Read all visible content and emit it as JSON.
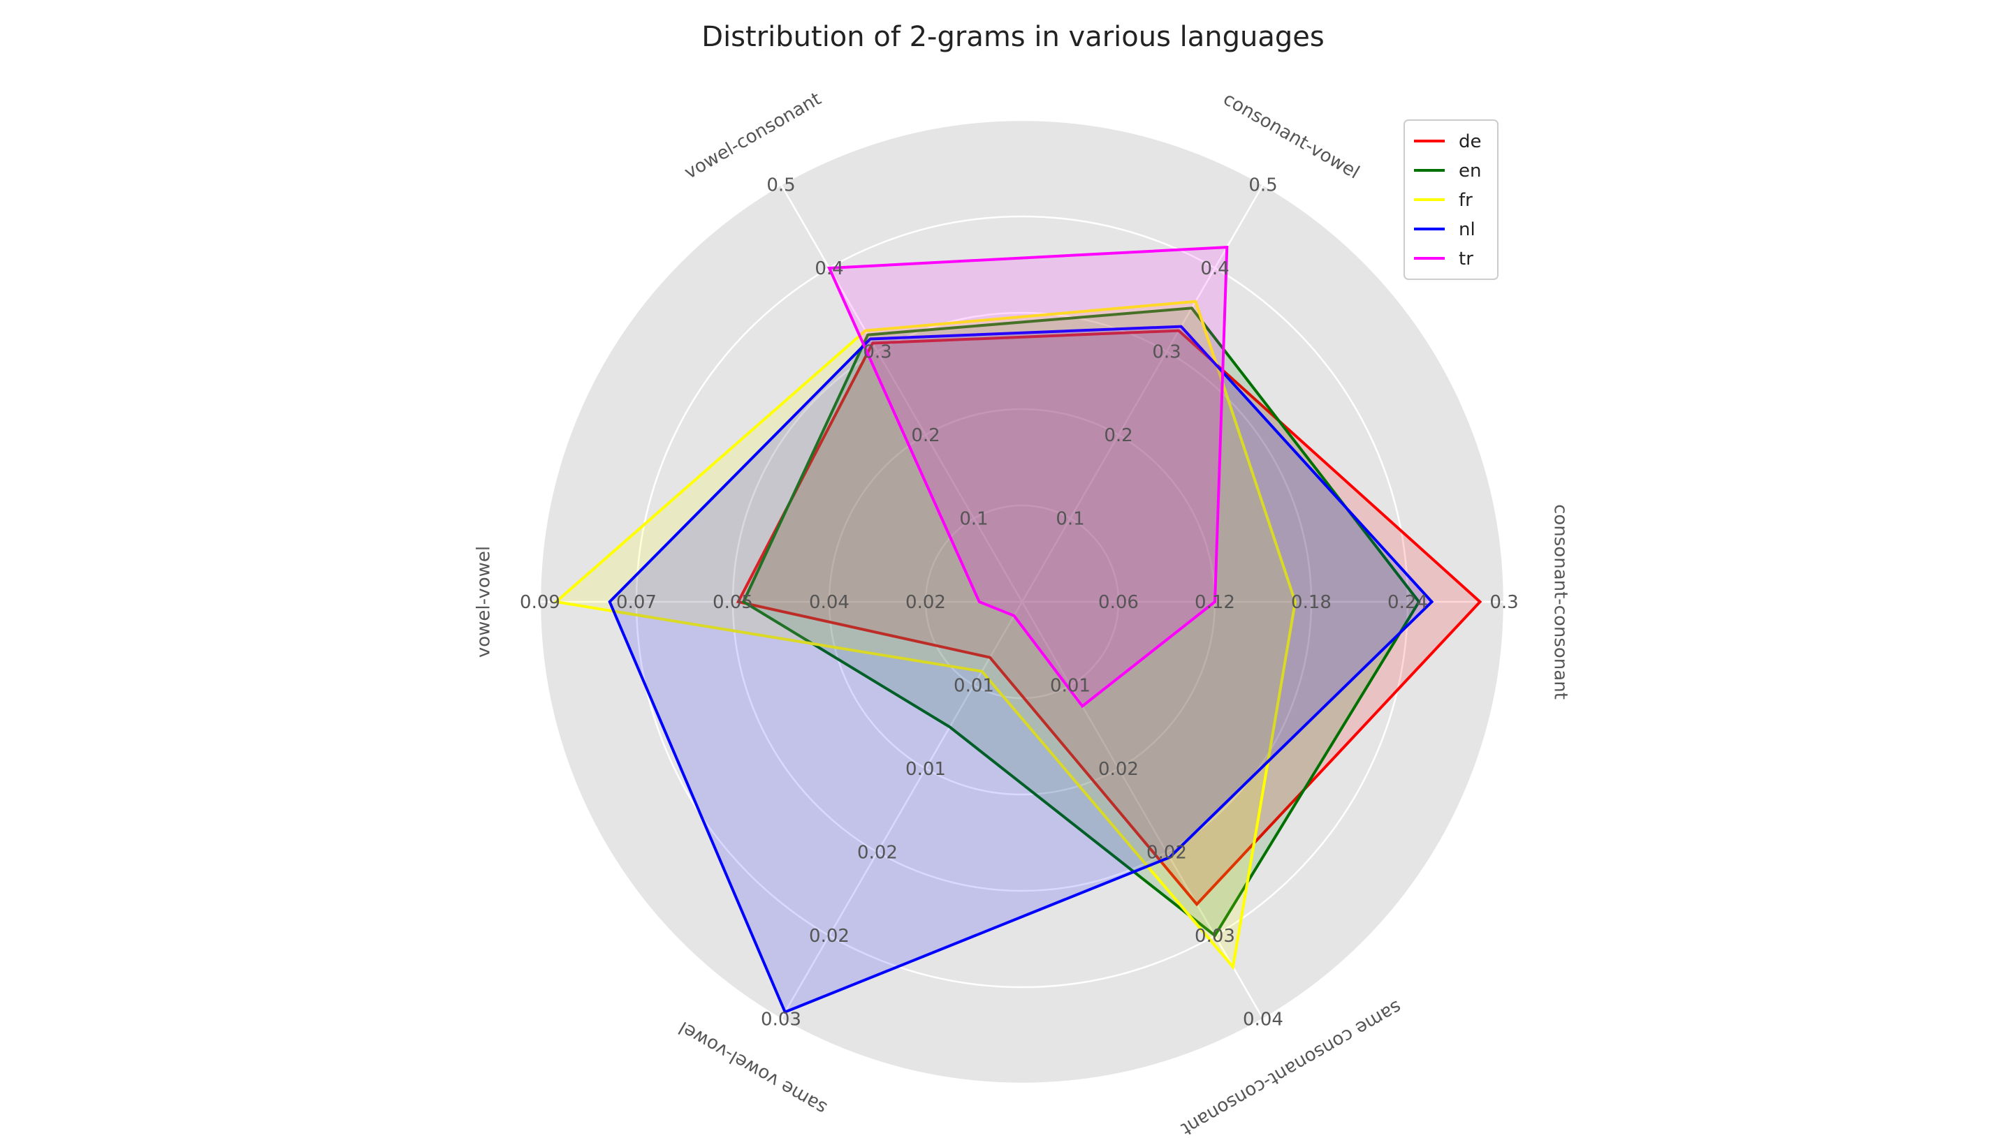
{
  "chart_data": {
    "type": "radar",
    "title": "Distribution of 2-grams in various languages",
    "axes": [
      {
        "label": "consonant-consonant",
        "max": 0.3,
        "ticks": [
          {
            "value": 0.06,
            "label": "0.06"
          },
          {
            "value": 0.12,
            "label": "0.12"
          },
          {
            "value": 0.18,
            "label": "0.18"
          },
          {
            "value": 0.24,
            "label": "0.24"
          },
          {
            "value": 0.3,
            "label": "0.3"
          }
        ]
      },
      {
        "label": "consonant-vowel",
        "max": 0.5,
        "ticks": [
          {
            "value": 0.1,
            "label": "0.1"
          },
          {
            "value": 0.2,
            "label": "0.2"
          },
          {
            "value": 0.3,
            "label": "0.3"
          },
          {
            "value": 0.4,
            "label": "0.4"
          },
          {
            "value": 0.5,
            "label": "0.5"
          }
        ]
      },
      {
        "label": "vowel-consonant",
        "max": 0.5,
        "ticks": [
          {
            "value": 0.1,
            "label": "0.1"
          },
          {
            "value": 0.2,
            "label": "0.2"
          },
          {
            "value": 0.3,
            "label": "0.3"
          },
          {
            "value": 0.4,
            "label": "0.4"
          },
          {
            "value": 0.5,
            "label": "0.5"
          }
        ]
      },
      {
        "label": "vowel-vowel",
        "max": 0.09,
        "ticks": [
          {
            "value": 0.018,
            "label": "0.02"
          },
          {
            "value": 0.036,
            "label": "0.04"
          },
          {
            "value": 0.054,
            "label": "0.05"
          },
          {
            "value": 0.072,
            "label": "0.07"
          },
          {
            "value": 0.09,
            "label": "0.09"
          }
        ]
      },
      {
        "label": "same vowel-vowel",
        "max": 0.03,
        "ticks": [
          {
            "value": 0.006,
            "label": "0.01"
          },
          {
            "value": 0.012,
            "label": "0.01"
          },
          {
            "value": 0.018,
            "label": "0.02"
          },
          {
            "value": 0.024,
            "label": "0.02"
          },
          {
            "value": 0.03,
            "label": "0.03"
          }
        ]
      },
      {
        "label": "same consonant-consonant",
        "max": 0.04,
        "ticks": [
          {
            "value": 0.008,
            "label": "0.01"
          },
          {
            "value": 0.016,
            "label": "0.02"
          },
          {
            "value": 0.024,
            "label": "0.02"
          },
          {
            "value": 0.032,
            "label": "0.03"
          },
          {
            "value": 0.04,
            "label": "0.04"
          }
        ]
      }
    ],
    "series": [
      {
        "name": "de",
        "color": "#ff0000",
        "values": [
          0.285,
          0.325,
          0.31,
          0.053,
          0.004,
          0.029
        ]
      },
      {
        "name": "en",
        "color": "#007000",
        "values": [
          0.247,
          0.352,
          0.32,
          0.052,
          0.009,
          0.032
        ]
      },
      {
        "name": "fr",
        "color": "#ffff00",
        "values": [
          0.17,
          0.36,
          0.325,
          0.087,
          0.005,
          0.035
        ]
      },
      {
        "name": "nl",
        "color": "#0000ff",
        "values": [
          0.255,
          0.33,
          0.315,
          0.077,
          0.0295,
          0.0245
        ]
      },
      {
        "name": "tr",
        "color": "#ff00ff",
        "values": [
          0.12,
          0.425,
          0.4,
          0.008,
          0.001,
          0.01
        ]
      }
    ],
    "grid": true,
    "legend": "top-right",
    "background": "#e5e5e5",
    "grid_color": "#ffffff"
  }
}
